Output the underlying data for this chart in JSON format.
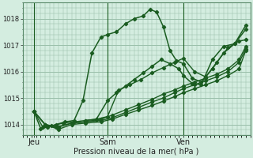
{
  "bg_color": "#d4ede0",
  "grid_color": "#9abfaa",
  "line_color": "#1a5c20",
  "xlabel": "Pression niveau de la mer( hPa )",
  "ylim": [
    1013.6,
    1018.6
  ],
  "yticks": [
    1014,
    1015,
    1016,
    1017,
    1018
  ],
  "xtick_labels": [
    "Jeu",
    "Sam",
    "Ven"
  ],
  "xtick_positions": [
    0.05,
    0.38,
    0.72
  ],
  "x_vlines": [
    0.05,
    0.38,
    0.72
  ],
  "series": [
    {
      "x": [
        0.05,
        0.08,
        0.11,
        0.15,
        0.19,
        0.23,
        0.27,
        0.31,
        0.35,
        0.38,
        0.42,
        0.46,
        0.5,
        0.54,
        0.57,
        0.6,
        0.63,
        0.66,
        0.69,
        0.72,
        0.76,
        0.8,
        0.85,
        0.9,
        0.95,
        1.0
      ],
      "y": [
        1014.5,
        1013.85,
        1013.9,
        1014.0,
        1014.1,
        1014.15,
        1014.9,
        1016.7,
        1017.3,
        1017.4,
        1017.5,
        1017.8,
        1018.0,
        1018.1,
        1018.35,
        1018.25,
        1017.7,
        1016.8,
        1016.4,
        1016.3,
        1015.75,
        1015.6,
        1016.1,
        1016.7,
        1017.05,
        1017.6
      ],
      "marker": "D",
      "markersize": 2.2,
      "linewidth": 1.1
    },
    {
      "x": [
        0.05,
        0.09,
        0.13,
        0.18,
        0.23,
        0.28,
        0.33,
        0.38,
        0.43,
        0.48,
        0.53,
        0.58,
        0.63,
        0.68,
        0.72,
        0.77,
        0.82,
        0.87,
        0.92,
        0.97,
        1.0
      ],
      "y": [
        1014.5,
        1013.9,
        1013.95,
        1014.05,
        1014.1,
        1014.15,
        1014.2,
        1014.3,
        1015.3,
        1015.5,
        1015.7,
        1015.95,
        1016.15,
        1016.35,
        1016.5,
        1016.0,
        1015.8,
        1016.35,
        1016.9,
        1017.15,
        1017.2
      ],
      "marker": "D",
      "markersize": 2.2,
      "linewidth": 1.0
    },
    {
      "x": [
        0.05,
        0.1,
        0.15,
        0.22,
        0.28,
        0.35,
        0.4,
        0.46,
        0.52,
        0.58,
        0.63,
        0.68,
        0.72,
        0.77,
        0.82,
        0.87,
        0.92,
        0.97,
        1.0
      ],
      "y": [
        1014.5,
        1014.0,
        1013.9,
        1014.05,
        1014.1,
        1014.2,
        1014.35,
        1014.55,
        1014.75,
        1014.95,
        1015.15,
        1015.3,
        1015.45,
        1015.6,
        1015.75,
        1015.9,
        1016.1,
        1016.45,
        1016.95
      ],
      "marker": "D",
      "markersize": 2.2,
      "linewidth": 1.0
    },
    {
      "x": [
        0.05,
        0.1,
        0.16,
        0.22,
        0.28,
        0.35,
        0.4,
        0.46,
        0.52,
        0.58,
        0.63,
        0.68,
        0.72,
        0.77,
        0.82,
        0.87,
        0.92,
        0.97,
        1.0
      ],
      "y": [
        1014.5,
        1014.0,
        1013.9,
        1014.05,
        1014.1,
        1014.15,
        1014.25,
        1014.45,
        1014.65,
        1014.85,
        1015.0,
        1015.2,
        1015.35,
        1015.5,
        1015.65,
        1015.8,
        1016.0,
        1016.35,
        1016.85
      ],
      "marker": "D",
      "markersize": 2.2,
      "linewidth": 1.0
    },
    {
      "x": [
        0.05,
        0.1,
        0.16,
        0.22,
        0.28,
        0.35,
        0.4,
        0.46,
        0.52,
        0.58,
        0.63,
        0.68,
        0.72,
        0.77,
        0.82,
        0.87,
        0.92,
        0.97,
        1.0
      ],
      "y": [
        1014.5,
        1014.0,
        1013.82,
        1014.0,
        1014.05,
        1014.1,
        1014.2,
        1014.38,
        1014.55,
        1014.72,
        1014.88,
        1015.05,
        1015.2,
        1015.35,
        1015.5,
        1015.65,
        1015.85,
        1016.1,
        1016.8
      ],
      "marker": "D",
      "markersize": 2.2,
      "linewidth": 1.0
    },
    {
      "x": [
        0.28,
        0.33,
        0.38,
        0.42,
        0.46,
        0.5,
        0.54,
        0.58,
        0.62,
        0.66,
        0.7,
        0.72,
        0.76,
        0.8,
        0.85,
        0.9,
        0.95,
        1.0
      ],
      "y": [
        1014.15,
        1014.2,
        1014.9,
        1015.2,
        1015.45,
        1015.7,
        1015.95,
        1016.2,
        1016.45,
        1016.3,
        1016.1,
        1015.85,
        1015.55,
        1015.5,
        1016.45,
        1016.95,
        1017.05,
        1017.75
      ],
      "marker": "D",
      "markersize": 2.2,
      "linewidth": 1.1
    }
  ]
}
